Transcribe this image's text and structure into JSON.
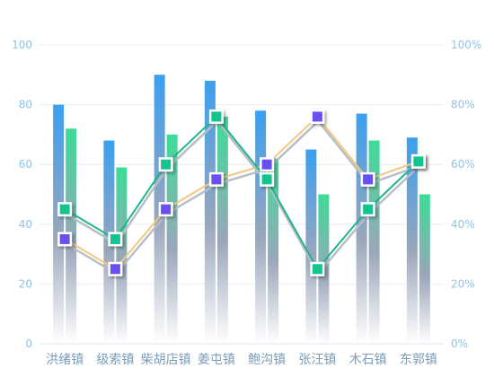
{
  "chart_data": {
    "type": "bar",
    "categories": [
      "洪绪镇",
      "级索镇",
      "柴胡店镇",
      "姜屯镇",
      "鲍沟镇",
      "张汪镇",
      "木石镇",
      "东郭镇"
    ],
    "bar_series": [
      {
        "values": [
          80,
          68,
          90,
          88,
          78,
          65,
          77,
          69
        ],
        "color_top": "#3b9ff0",
        "color_bottom": "#ffffff"
      },
      {
        "values": [
          72,
          59,
          70,
          76,
          62,
          50,
          68,
          50
        ],
        "color_top": "#3ddc97",
        "color_bottom": "#ffffff"
      }
    ],
    "line_series": [
      {
        "axis": "right",
        "values": [
          35,
          25,
          45,
          55,
          60,
          76,
          55,
          61
        ],
        "line_color": "#f5c77e",
        "marker_color": "#6a4ff0"
      },
      {
        "axis": "right",
        "values": [
          45,
          35,
          60,
          76,
          55,
          25,
          45,
          61
        ],
        "line_color": "#1fb58a",
        "marker_color": "#14c48e"
      }
    ],
    "y_left": {
      "min": 0,
      "max": 100,
      "ticks": [
        "0",
        "20",
        "40",
        "60",
        "80",
        "100"
      ]
    },
    "y_right": {
      "min": 0,
      "max": 100,
      "ticks": [
        "0%",
        "20%",
        "40%",
        "60%",
        "80%",
        "100%"
      ]
    },
    "grid": true
  }
}
